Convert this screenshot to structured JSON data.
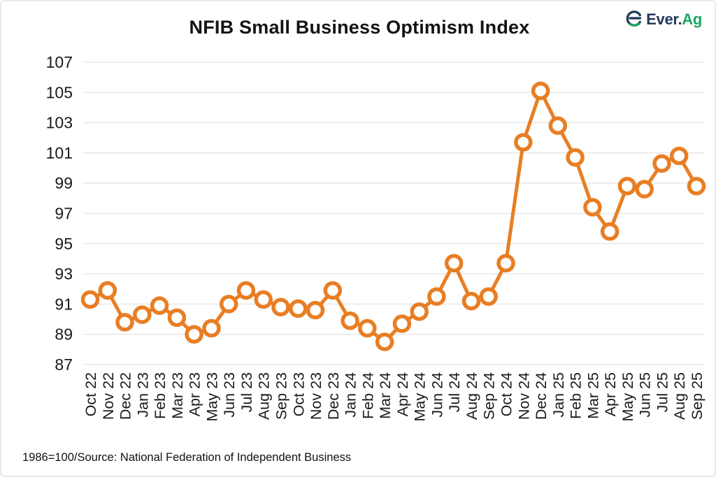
{
  "header": {
    "title": "NFIB Small Business Optimism Index",
    "logo": {
      "icon": "ever-ag-e-icon",
      "brand_primary": "Ever.",
      "brand_secondary": "Ag",
      "primary_color": "#22395B",
      "secondary_color": "#1EA562"
    }
  },
  "footer": {
    "source_note": "1986=100/Source: National Federation of Independent Business"
  },
  "chart_data": {
    "type": "line",
    "title": "NFIB Small Business Optimism Index",
    "series_name": "NFIB Small Business Optimism Index",
    "categories": [
      "Oct 22",
      "Nov 22",
      "Dec 22",
      "Jan 23",
      "Feb 23",
      "Mar 23",
      "Apr 23",
      "May 23",
      "Jun 23",
      "Jul 23",
      "Aug 23",
      "Sep 23",
      "Oct 23",
      "Nov 23",
      "Dec 23",
      "Jan 24",
      "Feb 24",
      "Mar 24",
      "Apr 24",
      "May 24",
      "Jun 24",
      "Jul 24",
      "Aug 24",
      "Sep 24",
      "Oct 24",
      "Nov 24",
      "Dec 24",
      "Jan 25",
      "Feb 25",
      "Mar 25",
      "Apr 25",
      "May 25",
      "Jun 25",
      "Jul 25",
      "Aug 25",
      "Sep 25"
    ],
    "values": [
      91.3,
      91.9,
      89.8,
      90.3,
      90.9,
      90.1,
      89.0,
      89.4,
      91.0,
      91.9,
      91.3,
      90.8,
      90.7,
      90.6,
      91.9,
      89.9,
      89.4,
      88.5,
      89.7,
      90.5,
      91.5,
      93.7,
      91.2,
      91.5,
      93.7,
      101.7,
      105.1,
      102.8,
      100.7,
      97.4,
      95.8,
      98.8,
      98.6,
      100.3,
      100.8,
      98.8
    ],
    "xlabel": "",
    "ylabel": "",
    "ylim": [
      87,
      107
    ],
    "y_tick_step": 2,
    "y_tick_labels": [
      "87",
      "89",
      "91",
      "93",
      "95",
      "97",
      "99",
      "101",
      "103",
      "105",
      "107"
    ],
    "grid": "horizontal",
    "legend": "none",
    "line_color": "#E87E23",
    "marker_style": "open-circle",
    "marker_fill": "#FFFFFF",
    "gridline_color": "#E4E4E4",
    "tick_label_color": "#1A1A1A",
    "source": "1986=100/Source: National Federation of Independent Business"
  }
}
